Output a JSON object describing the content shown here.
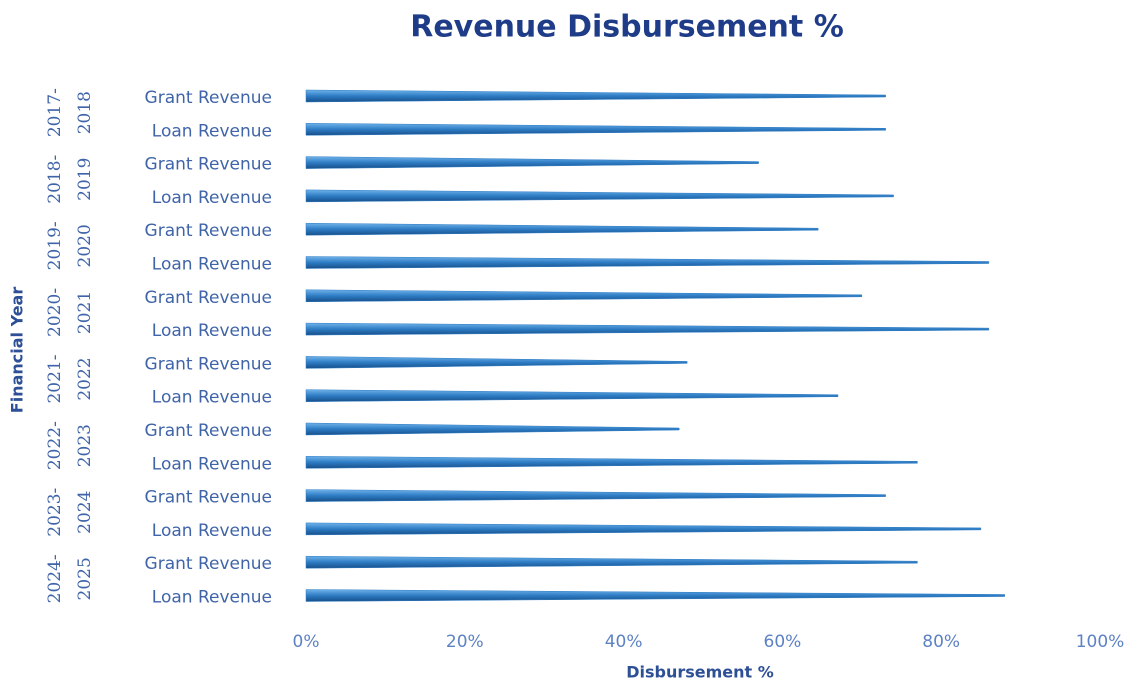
{
  "chart_data": {
    "type": "bar",
    "orientation": "horizontal",
    "title": "Revenue Disbursement %",
    "x_label": "Disbursement %",
    "y_label": "Financial Year",
    "color": "#2e7cc4",
    "xlim": [
      0,
      100
    ],
    "xticks": [
      {
        "value": 0,
        "label": "0%"
      },
      {
        "value": 20,
        "label": "20%"
      },
      {
        "value": 40,
        "label": "40%"
      },
      {
        "value": 60,
        "label": "60%"
      },
      {
        "value": 80,
        "label": "80%"
      },
      {
        "value": 100,
        "label": "100%"
      }
    ],
    "groups": [
      {
        "name": "2017-2018",
        "categories": [
          "Grant Revenue",
          "Loan Revenue"
        ],
        "values": [
          73,
          73
        ]
      },
      {
        "name": "2018-2019",
        "categories": [
          "Grant Revenue",
          "Loan Revenue"
        ],
        "values": [
          57,
          74
        ]
      },
      {
        "name": "2019-2020",
        "categories": [
          "Grant Revenue",
          "Loan Revenue"
        ],
        "values": [
          64.5,
          86
        ]
      },
      {
        "name": "2020-2021",
        "categories": [
          "Grant Revenue",
          "Loan Revenue"
        ],
        "values": [
          70,
          86
        ]
      },
      {
        "name": "2021-2022",
        "categories": [
          "Grant Revenue",
          "Loan Revenue"
        ],
        "values": [
          48,
          67
        ]
      },
      {
        "name": "2022-2023",
        "categories": [
          "Grant Revenue",
          "Loan Revenue"
        ],
        "values": [
          47,
          77
        ]
      },
      {
        "name": "2023-2024",
        "categories": [
          "Grant Revenue",
          "Loan Revenue"
        ],
        "values": [
          73,
          85
        ]
      },
      {
        "name": "2024-2025",
        "categories": [
          "Grant Revenue",
          "Loan Revenue"
        ],
        "values": [
          77,
          88
        ]
      }
    ]
  }
}
